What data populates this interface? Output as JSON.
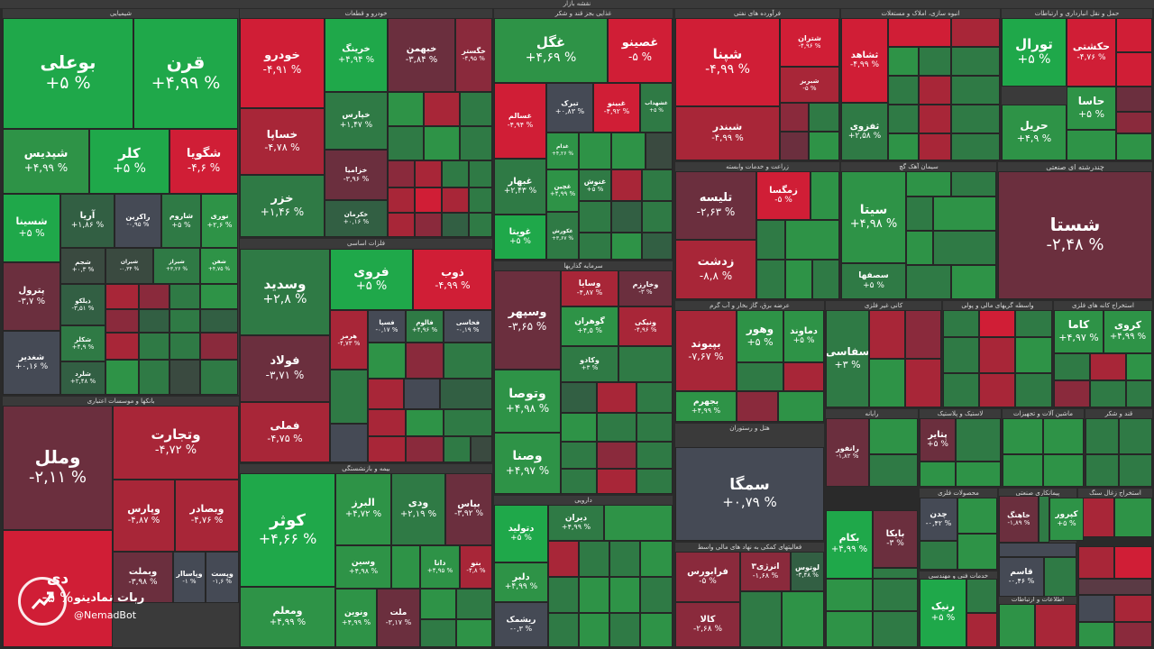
{
  "page_title": "نقشه بازار",
  "colors": {
    "g5": "#1fa84a",
    "g4": "#2e9347",
    "g3": "#2f7a45",
    "g2": "#325f43",
    "g1": "#3a4a40",
    "n": "#454a55",
    "r1": "#5a3a44",
    "r2": "#6b2f3e",
    "r3": "#8a2a3c",
    "r4": "#a82638",
    "r5": "#d01e36"
  },
  "watermark": {
    "name": "ربات نمادینو",
    "handle": "@NemadBot"
  },
  "sectors": [
    {
      "id": "s1",
      "title": "شیمیایی"
    },
    {
      "id": "s2",
      "title": "خودرو و قطعات"
    },
    {
      "id": "s3",
      "title": "غذایی بجز قند و شکر"
    },
    {
      "id": "s4",
      "title": "فرآورده های نفتی"
    },
    {
      "id": "s5",
      "title": "انبوه سازی، املاک و مستغلات"
    },
    {
      "id": "s6",
      "title": "حمل و نقل انبارداری و ارتباطات"
    },
    {
      "id": "s7",
      "title": "بانکها و موسسات اعتباری"
    },
    {
      "id": "s8",
      "title": "فلزات اساسی"
    },
    {
      "id": "s9",
      "title": "سرمایه گذاریها"
    },
    {
      "id": "s10",
      "title": "زراعت و خدمات وابسته"
    },
    {
      "id": "s11",
      "title": "سیمان آهک گچ"
    },
    {
      "id": "s12",
      "title": "چندرشته ای صنعتی"
    },
    {
      "id": "s13",
      "title": "عرضه برق، گاز بخار و آب گرم"
    },
    {
      "id": "s14",
      "title": "کانی غیر فلزی"
    },
    {
      "id": "s15",
      "title": "واسطه گریهای مالی و پولی"
    },
    {
      "id": "s16",
      "title": "استخراج کانه های فلزی"
    },
    {
      "id": "s17",
      "title": "بیمه و بازنشستگی"
    },
    {
      "id": "s18",
      "title": "دارویی"
    },
    {
      "id": "s19",
      "title": "هتل و رستوران"
    },
    {
      "id": "s20",
      "title": "رایانه"
    },
    {
      "id": "s21",
      "title": "لاستیک و پلاستیک"
    },
    {
      "id": "s22",
      "title": "ماشین آلات و تجهیزات"
    },
    {
      "id": "s23",
      "title": "قند و شکر"
    },
    {
      "id": "s24",
      "title": "فعالیتهای کمکی به نهاد های مالی واسط"
    },
    {
      "id": "s25",
      "title": "محصولات فلزی"
    },
    {
      "id": "s26",
      "title": "پیمانکاری صنعتی"
    },
    {
      "id": "s27",
      "title": "استخراج زغال سنگ"
    },
    {
      "id": "s28",
      "title": "خدمات فنی و مهندسی"
    },
    {
      "id": "s29",
      "title": "اطلاعات و ارتباطات"
    }
  ],
  "tiles": [
    {
      "id": "t1",
      "name": "بوعلی",
      "value": "+۵ %"
    },
    {
      "id": "t2",
      "name": "قرن",
      "value": "+۴,۹۹ %"
    },
    {
      "id": "t3",
      "name": "شپدیس",
      "value": "+۴,۹۹ %"
    },
    {
      "id": "t4",
      "name": "کلر",
      "value": "+۵ %"
    },
    {
      "id": "t5",
      "name": "شگویا",
      "value": "-۴,۶ %"
    },
    {
      "id": "t6",
      "name": "شسینا",
      "value": "+۵ %"
    },
    {
      "id": "t7",
      "name": "آریا",
      "value": "+۱,۸۶ %"
    },
    {
      "id": "t8",
      "name": "راکرین",
      "value": "-۰,۹۵ %"
    },
    {
      "id": "t9",
      "name": "شاروم",
      "value": "+۵ %"
    },
    {
      "id": "t10",
      "name": "نوری",
      "value": "+۲,۶ %"
    },
    {
      "id": "t11",
      "name": "پترول",
      "value": "-۳,۷ %"
    },
    {
      "id": "t12",
      "name": "شجم",
      "value": "+۰,۳ %"
    },
    {
      "id": "t13",
      "name": "شیران",
      "value": "-۰,۳۴ %"
    },
    {
      "id": "t14",
      "name": "شیراز",
      "value": "+۳,۲۶ %"
    },
    {
      "id": "t15",
      "name": "شفن",
      "value": "+۴,۷۵ %"
    },
    {
      "id": "t16",
      "name": "شغدیر",
      "value": "+۰,۱۶ %"
    },
    {
      "id": "t17",
      "name": "ذیلکو",
      "value": "-۳,۵۱ %"
    },
    {
      "id": "t18",
      "name": "شکلر",
      "value": "+۴,۹ %"
    },
    {
      "id": "t19",
      "name": "شلرد",
      "value": "+۲,۴۸ %"
    },
    {
      "id": "t20",
      "name": "خودرو",
      "value": "-۴,۹۱ %"
    },
    {
      "id": "t21",
      "name": "خرینگ",
      "value": "+۴,۹۴ %"
    },
    {
      "id": "t22",
      "name": "خبهمن",
      "value": "-۳,۸۴ %"
    },
    {
      "id": "t23",
      "name": "خگستر",
      "value": "-۴,۹۵ %"
    },
    {
      "id": "t24",
      "name": "خساپا",
      "value": "-۴,۷۸ %"
    },
    {
      "id": "t25",
      "name": "خپارس",
      "value": "+۱,۴۷ %"
    },
    {
      "id": "t26",
      "name": "خزامیا",
      "value": "-۳,۹۶ %"
    },
    {
      "id": "t27",
      "name": "خزر",
      "value": "+۱,۴۶ %"
    },
    {
      "id": "t28",
      "name": "خکرمان",
      "value": "+۰,۱۶ %"
    },
    {
      "id": "t29",
      "name": "غگل",
      "value": "+۴,۶۹ %"
    },
    {
      "id": "t30",
      "name": "غصینو",
      "value": "-۵ %"
    },
    {
      "id": "t31",
      "name": "غسالم",
      "value": "-۴,۹۴ %"
    },
    {
      "id": "t32",
      "name": "تبرک",
      "value": "+۰,۸۳ %"
    },
    {
      "id": "t33",
      "name": "غبینو",
      "value": "-۴,۹۲ %"
    },
    {
      "id": "t34",
      "name": "غشهداب",
      "value": "+۵ %"
    },
    {
      "id": "t35",
      "name": "غبهار",
      "value": "+۲,۴۳ %"
    },
    {
      "id": "t36",
      "name": "غویتا",
      "value": "+۵ %"
    },
    {
      "id": "t37",
      "name": "غدام",
      "value": "+۴,۲۶ %"
    },
    {
      "id": "t38",
      "name": "غنوش",
      "value": "+۵ %"
    },
    {
      "id": "t39",
      "name": "غچین",
      "value": "+۴,۹۹ %"
    },
    {
      "id": "t40",
      "name": "غکورش",
      "value": "+۳,۶۷ %"
    },
    {
      "id": "t41",
      "name": "شپنا",
      "value": "-۴,۹۹ %"
    },
    {
      "id": "t42",
      "name": "شبندر",
      "value": "-۴,۹۹ %"
    },
    {
      "id": "t43",
      "name": "شتران",
      "value": "-۴,۹۶ %"
    },
    {
      "id": "t44",
      "name": "شبریز",
      "value": "-۵ %"
    },
    {
      "id": "t45",
      "name": "ثشاهد",
      "value": "-۴,۹۹ %"
    },
    {
      "id": "t46",
      "name": "ثفزوی",
      "value": "+۲,۵۸ %"
    },
    {
      "id": "t47",
      "name": "تورال",
      "value": "+۵ %"
    },
    {
      "id": "t48",
      "name": "حکشتی",
      "value": "-۴,۷۶ %"
    },
    {
      "id": "t49",
      "name": "حریل",
      "value": "+۴,۹ %"
    },
    {
      "id": "t50",
      "name": "حاسا",
      "value": "+۵ %"
    },
    {
      "id": "t51",
      "name": "وملل",
      "value": "-۲,۱۱ %"
    },
    {
      "id": "t52",
      "name": "وتجارت",
      "value": "-۴,۷۲ %"
    },
    {
      "id": "t53",
      "name": "وپارس",
      "value": "-۴,۸۷ %"
    },
    {
      "id": "t54",
      "name": "وبصادر",
      "value": "-۴,۷۶ %"
    },
    {
      "id": "t55",
      "name": "وبملت",
      "value": "-۳,۹۸ %"
    },
    {
      "id": "t56",
      "name": "وپاساار",
      "value": "-۱ %"
    },
    {
      "id": "t57",
      "name": "وپست",
      "value": "-۱,۶ %"
    },
    {
      "id": "t58",
      "name": "دی",
      "value": "-۵ %"
    },
    {
      "id": "t59",
      "name": "وسدید",
      "value": "+۲,۸ %"
    },
    {
      "id": "t60",
      "name": "فروی",
      "value": "+۵ %"
    },
    {
      "id": "t61",
      "name": "ذوب",
      "value": "-۴,۹۹ %"
    },
    {
      "id": "t62",
      "name": "فولاد",
      "value": "-۳,۷۱ %"
    },
    {
      "id": "t63",
      "name": "فملی",
      "value": "-۴,۷۵ %"
    },
    {
      "id": "t64",
      "name": "هرمز",
      "value": "-۴,۷۳ %"
    },
    {
      "id": "t65",
      "name": "فسپا",
      "value": "-۰,۱۷ %"
    },
    {
      "id": "t66",
      "name": "فالوم",
      "value": "+۴,۹۶ %"
    },
    {
      "id": "t67",
      "name": "فخاسی",
      "value": "-۰,۱۹ %"
    },
    {
      "id": "t68",
      "name": "وسپهر",
      "value": "-۳,۶۵ %"
    },
    {
      "id": "t69",
      "name": "وسایا",
      "value": "-۴,۸۷ %"
    },
    {
      "id": "t70",
      "name": "وخارزم",
      "value": "-۳ %"
    },
    {
      "id": "t71",
      "name": "گوهران",
      "value": "+۴,۵ %"
    },
    {
      "id": "t72",
      "name": "ونیکی",
      "value": "-۴,۹۶ %"
    },
    {
      "id": "t73",
      "name": "وتوصا",
      "value": "+۴,۹۸ %"
    },
    {
      "id": "t74",
      "name": "وصنا",
      "value": "+۴,۹۷ %"
    },
    {
      "id": "t75",
      "name": "وکادو",
      "value": "+۳ %"
    },
    {
      "id": "t76",
      "name": "تلیسه",
      "value": "-۲,۶۳ %"
    },
    {
      "id": "t77",
      "name": "زمگسا",
      "value": "-۵ %"
    },
    {
      "id": "t78",
      "name": "زدشت",
      "value": "-۸,۸ %"
    },
    {
      "id": "t79",
      "name": "سیتا",
      "value": "+۴,۹۸ %"
    },
    {
      "id": "t80",
      "name": "سصفها",
      "value": "+۵ %"
    },
    {
      "id": "t81",
      "name": "شستا",
      "value": "-۲,۴۸ %"
    },
    {
      "id": "t82",
      "name": "بپیوند",
      "value": "-۷,۶۷ %"
    },
    {
      "id": "t83",
      "name": "وهور",
      "value": "+۵ %"
    },
    {
      "id": "t84",
      "name": "دماوند",
      "value": "+۵ %"
    },
    {
      "id": "t85",
      "name": "بجهرم",
      "value": "+۴,۹۹ %"
    },
    {
      "id": "t86",
      "name": "سفاسی",
      "value": "+۳ %"
    },
    {
      "id": "t87",
      "name": "کاما",
      "value": "+۴,۹۷ %"
    },
    {
      "id": "t88",
      "name": "کروی",
      "value": "+۴,۹۹ %"
    },
    {
      "id": "t89",
      "name": "سمگا",
      "value": "+۰,۷۹ %"
    },
    {
      "id": "t90",
      "name": "کوثر",
      "value": "+۴,۶۶ %"
    },
    {
      "id": "t91",
      "name": "البرز",
      "value": "+۴,۷۲ %"
    },
    {
      "id": "t92",
      "name": "ودی",
      "value": "+۲,۱۹ %"
    },
    {
      "id": "t93",
      "name": "بپاس",
      "value": "-۳,۹۲ %"
    },
    {
      "id": "t94",
      "name": "ومعلم",
      "value": "+۴,۹۹ %"
    },
    {
      "id": "t95",
      "name": "وسین",
      "value": "+۴,۹۸ %"
    },
    {
      "id": "t96",
      "name": "دانا",
      "value": "+۴,۹۵ %"
    },
    {
      "id": "t97",
      "name": "بنو",
      "value": "-۴,۸ %"
    },
    {
      "id": "t98",
      "name": "ونوین",
      "value": "+۴,۹۹ %"
    },
    {
      "id": "t99",
      "name": "ملت",
      "value": "-۳,۱۷ %"
    },
    {
      "id": "t100",
      "name": "دتولید",
      "value": "+۵ %"
    },
    {
      "id": "t101",
      "name": "دیران",
      "value": "+۴,۹۹ %"
    },
    {
      "id": "t102",
      "name": "دلبر",
      "value": "+۴,۹۹ %"
    },
    {
      "id": "t103",
      "name": "ریشمک",
      "value": "-۰,۳ %"
    },
    {
      "id": "t104",
      "name": "رانفور",
      "value": "-۱,۸۲ %"
    },
    {
      "id": "t105",
      "name": "پتایر",
      "value": "+۵ %"
    },
    {
      "id": "t106",
      "name": "بکام",
      "value": "+۴,۹۹ %"
    },
    {
      "id": "t107",
      "name": "بایکا",
      "value": "-۳ %"
    },
    {
      "id": "t108",
      "name": "چدن",
      "value": "-۰,۴۲ %"
    },
    {
      "id": "t109",
      "name": "فرابورس",
      "value": "-۵ %"
    },
    {
      "id": "t110",
      "name": "کالا",
      "value": "-۲,۶۸ %"
    },
    {
      "id": "t111",
      "name": "انرژی۳",
      "value": "-۱,۶۸ %"
    },
    {
      "id": "t112",
      "name": "لوتوس",
      "value": "-۳,۴۸ %"
    },
    {
      "id": "t113",
      "name": "رنیک",
      "value": "+۵ %"
    },
    {
      "id": "t114",
      "name": "قاسم",
      "value": "-۰,۴۶ %"
    },
    {
      "id": "t115",
      "name": "خاهنگ",
      "value": "-۱,۸۹ %"
    },
    {
      "id": "t116",
      "name": "کپرور",
      "value": "+۵ %"
    }
  ]
}
